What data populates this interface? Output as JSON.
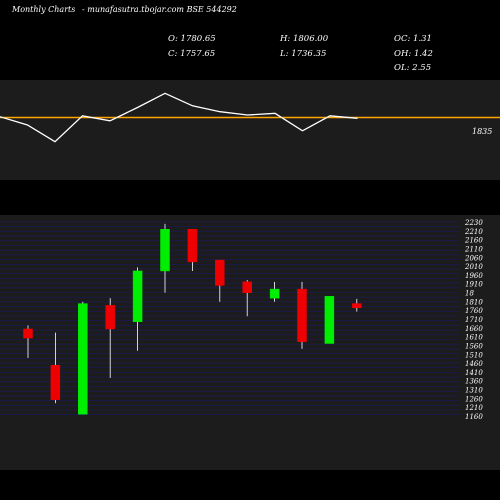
{
  "header": {
    "left": "Monthly Charts",
    "site": "- munafasutra.tbojar.com BSE 544292"
  },
  "ohlc": {
    "open": "O: 1780.65",
    "close": "C: 1757.65",
    "high": "H: 1806.00",
    "low": "L: 1736.35",
    "oc": "OC: 1.31",
    "oh": "OH: 1.42",
    "ol": "OL: 2.55"
  },
  "colors": {
    "background": "#000000",
    "panel": "#1c1c1c",
    "grid": "#1a1a66",
    "up": "#00ee00",
    "down": "#ee0000",
    "indicator_line": "#ffffff",
    "reference_line": "#ffa500"
  },
  "chart_data": [
    {
      "type": "line",
      "label": "1835",
      "reference": 1835,
      "ylim": [
        1760,
        1880
      ],
      "x": [
        1,
        2,
        3,
        4,
        5,
        6,
        7,
        8,
        9,
        10,
        11,
        12,
        13,
        14
      ],
      "values": [
        1836,
        1826,
        1806,
        1837,
        1831,
        1847,
        1864,
        1849,
        1842,
        1838,
        1840,
        1819,
        1837,
        1834
      ]
    },
    {
      "type": "candlestick",
      "ylim": [
        1160,
        2230
      ],
      "yticks": [
        2230,
        2210,
        2160,
        2110,
        2060,
        2010,
        1960,
        1910,
        "18",
        1810,
        1760,
        1710,
        1660,
        1610,
        1560,
        1510,
        1460,
        1410,
        1360,
        1310,
        1260,
        1210,
        1160
      ],
      "candles": [
        {
          "open": 1640,
          "high": 1660,
          "low": 1480,
          "close": 1590
        },
        {
          "open": 1440,
          "high": 1620,
          "low": 1230,
          "close": 1250
        },
        {
          "open": 1170,
          "high": 1790,
          "low": 1170,
          "close": 1780
        },
        {
          "open": 1770,
          "high": 1810,
          "low": 1370,
          "close": 1640
        },
        {
          "open": 1680,
          "high": 1980,
          "low": 1520,
          "close": 1960
        },
        {
          "open": 1960,
          "high": 2220,
          "low": 1840,
          "close": 2190
        },
        {
          "open": 2190,
          "high": 2190,
          "low": 1960,
          "close": 2010
        },
        {
          "open": 2020,
          "high": 2020,
          "low": 1790,
          "close": 1880
        },
        {
          "open": 1900,
          "high": 1910,
          "low": 1710,
          "close": 1840
        },
        {
          "open": 1810,
          "high": 1900,
          "low": 1790,
          "close": 1860
        },
        {
          "open": 1860,
          "high": 1900,
          "low": 1530,
          "close": 1570
        },
        {
          "open": 1560,
          "high": 1820,
          "low": 1560,
          "close": 1820
        },
        {
          "open": 1780,
          "high": 1806,
          "low": 1736,
          "close": 1757
        }
      ]
    }
  ]
}
